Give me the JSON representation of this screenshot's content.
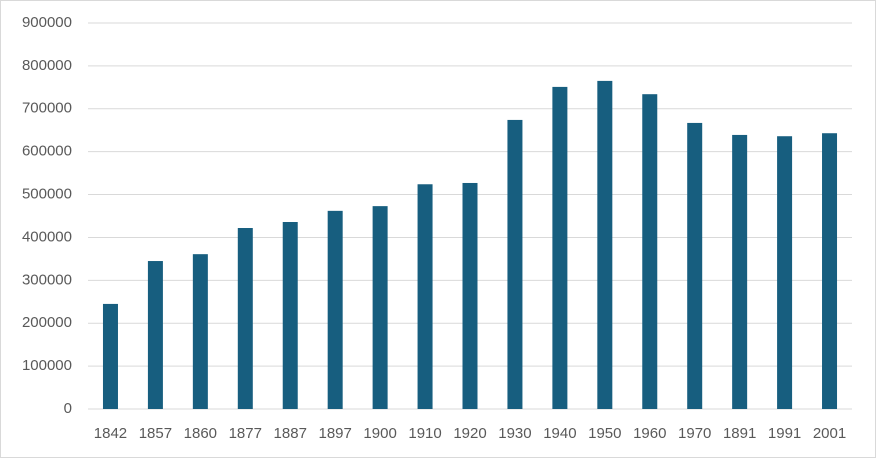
{
  "chart_data": {
    "type": "bar",
    "categories": [
      "1842",
      "1857",
      "1860",
      "1877",
      "1887",
      "1897",
      "1900",
      "1910",
      "1920",
      "1930",
      "1940",
      "1950",
      "1960",
      "1970",
      "1891",
      "1991",
      "2001"
    ],
    "values": [
      245000,
      345000,
      361000,
      422000,
      436000,
      462000,
      473000,
      524000,
      527000,
      674000,
      751000,
      765000,
      734000,
      667000,
      639000,
      636000,
      643000
    ],
    "color": "#175e7f",
    "ylim": [
      0,
      900000
    ],
    "yticks": [
      0,
      100000,
      200000,
      300000,
      400000,
      500000,
      600000,
      700000,
      800000,
      900000
    ],
    "grid": true
  }
}
